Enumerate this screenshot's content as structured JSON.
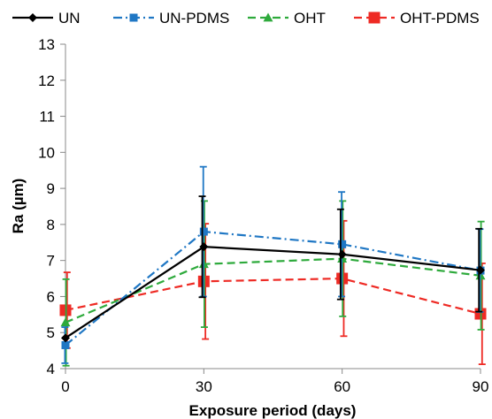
{
  "chart_data": {
    "type": "line",
    "xlabel": "Exposure period (days)",
    "ylabel": "Ra (µm)",
    "x": [
      0,
      30,
      60,
      90
    ],
    "x_ticks": [
      "0",
      "30",
      "60",
      "90"
    ],
    "ylim": [
      4,
      13
    ],
    "y_ticks": [
      "4",
      "5",
      "6",
      "7",
      "8",
      "9",
      "10",
      "11",
      "12",
      "13"
    ],
    "grid": false,
    "legend_position": "top",
    "series": [
      {
        "name": "UN",
        "values": [
          4.85,
          7.38,
          7.17,
          6.73
        ],
        "errors": [
          0.0,
          1.4,
          1.25,
          1.15
        ],
        "color": "#000000",
        "marker": "diamond",
        "dash": "solid"
      },
      {
        "name": "UN-PDMS",
        "values": [
          4.65,
          7.8,
          7.45,
          6.72
        ],
        "errors": [
          0.5,
          1.8,
          1.45,
          1.15
        ],
        "color": "#1f77c4",
        "marker": "square",
        "dash": "dashdot"
      },
      {
        "name": "OHT",
        "values": [
          5.28,
          6.9,
          7.05,
          6.58
        ],
        "errors": [
          1.2,
          1.75,
          1.6,
          1.5
        ],
        "color": "#2eaa3c",
        "marker": "triangle",
        "dash": "dashed"
      },
      {
        "name": "OHT-PDMS",
        "values": [
          5.62,
          6.42,
          6.5,
          5.52
        ],
        "errors": [
          1.05,
          1.6,
          1.6,
          1.4
        ],
        "color": "#ee2a24",
        "marker": "square-large",
        "dash": "dashed"
      }
    ]
  }
}
